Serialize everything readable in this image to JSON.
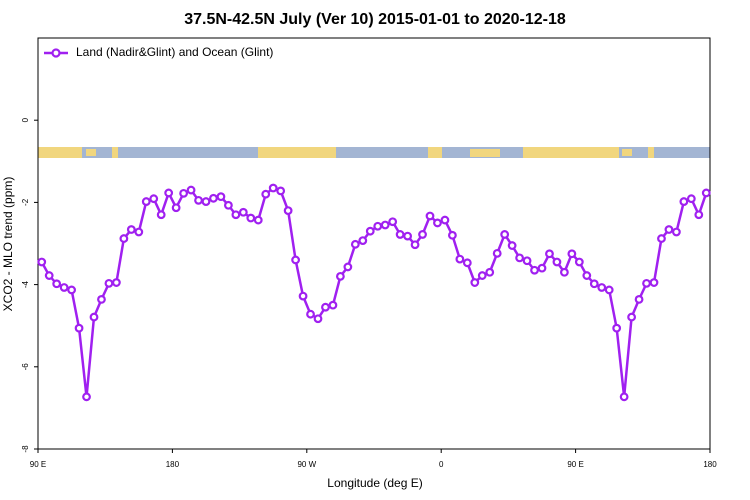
{
  "chart_data": {
    "type": "line",
    "title": "37.5N-42.5N July (Ver 10)   2015-01-01 to 2020-12-18",
    "x_label": "Longitude (deg E)",
    "y_label": "XCO2 - MLO trend (ppm)",
    "xlim": [
      90,
      540
    ],
    "ylim": [
      -8,
      2
    ],
    "xticks": [
      {
        "value": 90,
        "label": "90 E"
      },
      180,
      {
        "value": 270,
        "label": "90 W"
      },
      {
        "value": 360,
        "label": "0"
      },
      {
        "value": 450,
        "label": "90 E"
      },
      {
        "value": 540,
        "label": "180"
      }
    ],
    "yticks": [
      0,
      -2,
      -4,
      -6,
      -8
    ],
    "legend": "top-left",
    "x": [
      92.5,
      97.5,
      102.5,
      107.5,
      112.5,
      117.5,
      122.5,
      127.5,
      132.5,
      137.5,
      142.5,
      147.5,
      152.5,
      157.5,
      162.5,
      167.5,
      172.5,
      177.5,
      182.5,
      187.5,
      192.5,
      197.5,
      202.5,
      207.5,
      212.5,
      217.5,
      222.5,
      227.5,
      232.5,
      237.5,
      242.5,
      247.5,
      252.5,
      257.5,
      262.5,
      267.5,
      272.5,
      277.5,
      282.5,
      287.5,
      292.5,
      297.5,
      302.5,
      307.5,
      312.5,
      317.5,
      322.5,
      327.5,
      332.5,
      337.5,
      342.5,
      347.5,
      352.5,
      357.5,
      362.5,
      367.5,
      372.5,
      377.5,
      382.5,
      387.5,
      392.5,
      397.5,
      402.5,
      407.5,
      412.5,
      417.5,
      422.5,
      427.5,
      432.5,
      437.5,
      442.5,
      447.5,
      452.5,
      457.5,
      462.5,
      467.5,
      472.5,
      477.5,
      482.5,
      487.5,
      492.5,
      497.5,
      502.5,
      507.5,
      512.5,
      517.5,
      522.5,
      527.5,
      532.5,
      537.5
    ],
    "series": [
      {
        "name": "Land (Nadir&Glint) and Ocean (Glint)",
        "color": "#a020f0",
        "values": [
          -3.45,
          -3.78,
          -3.98,
          -4.07,
          -4.13,
          -5.06,
          -6.73,
          -4.79,
          -4.36,
          -3.97,
          -3.95,
          -2.88,
          -2.66,
          -2.72,
          -1.98,
          -1.91,
          -2.3,
          -1.77,
          -2.13,
          -1.78,
          -1.7,
          -1.95,
          -1.98,
          -1.9,
          -1.86,
          -2.07,
          -2.3,
          -2.24,
          -2.38,
          -2.43,
          -1.8,
          -1.65,
          -1.72,
          -2.2,
          -3.4,
          -4.28,
          -4.72,
          -4.83,
          -4.55,
          -4.5,
          -3.8,
          -3.57,
          -3.02,
          -2.93,
          -2.7,
          -2.58,
          -2.55,
          -2.47,
          -2.78,
          -2.82,
          -3.03,
          -2.78,
          -2.33,
          -2.5,
          -2.43,
          -2.8,
          -3.38,
          -3.47,
          -3.95,
          -3.78,
          -3.7,
          -3.24,
          -2.78,
          -3.05,
          -3.35,
          -3.42,
          -3.65,
          -3.6,
          -3.25,
          -3.45,
          -3.7,
          -3.25,
          -3.45,
          -3.78,
          -3.98,
          -4.07,
          -4.13,
          -5.06,
          -6.73,
          -4.79,
          -4.36,
          -3.97,
          -3.95,
          -2.88,
          -2.66,
          -2.72,
          -1.98,
          -1.91,
          -2.3,
          -1.77
        ]
      }
    ]
  }
}
